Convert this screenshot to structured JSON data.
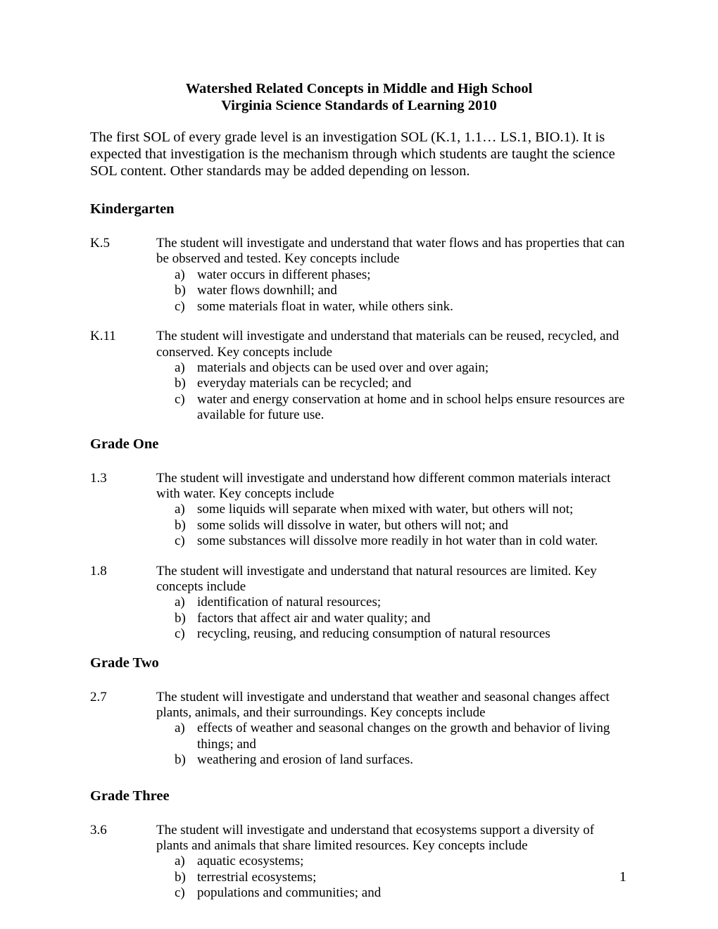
{
  "title_line1": "Watershed Related Concepts in Middle and High School",
  "title_line2": "Virginia Science Standards of Learning 2010",
  "intro": "The first SOL of every grade level is an investigation SOL (K.1, 1.1… LS.1, BIO.1). It is expected that investigation is the mechanism through which students are taught the science SOL content. Other standards may be added depending on lesson.",
  "sections": [
    {
      "heading": "Kindergarten",
      "standards": [
        {
          "code": "K.5",
          "stem": "The student will investigate and understand that water flows and has properties that can be observed and tested. Key concepts include",
          "concepts": [
            {
              "letter": "a)",
              "text": "water occurs in different phases;"
            },
            {
              "letter": "b)",
              "text": "water flows downhill; and"
            },
            {
              "letter": "c)",
              "text": "some materials float in water, while others sink."
            }
          ]
        },
        {
          "code": "K.11",
          "stem": "The student will investigate and understand that materials can be reused, recycled, and conserved. Key concepts include",
          "concepts": [
            {
              "letter": "a)",
              "text": "materials and objects can be used over and over again;"
            },
            {
              "letter": "b)",
              "text": "everyday materials can be recycled; and"
            },
            {
              "letter": "c)",
              "text": "water and energy conservation at home and in school helps ensure resources are available for future use."
            }
          ]
        }
      ]
    },
    {
      "heading": "Grade One",
      "standards": [
        {
          "code": "1.3",
          "stem": "The student will investigate and understand how different common materials interact with water. Key concepts include",
          "concepts": [
            {
              "letter": "a)",
              "text": "some liquids will separate when mixed with water, but others will not;"
            },
            {
              "letter": "b)",
              "text": "some solids will dissolve in water, but others will not; and"
            },
            {
              "letter": "c)",
              "text": "some substances will dissolve more readily in hot water than in cold water."
            }
          ]
        },
        {
          "code": "1.8",
          "stem": "The student will investigate and understand that natural resources are limited. Key concepts include",
          "concepts": [
            {
              "letter": "a)",
              "text": "identification of natural resources;"
            },
            {
              "letter": "b)",
              "text": "factors that affect air and water quality; and"
            },
            {
              "letter": "c)",
              "text": "recycling, reusing, and reducing consumption of natural resources"
            }
          ]
        }
      ]
    },
    {
      "heading": "Grade Two",
      "standards": [
        {
          "code": "2.7",
          "stem": "The student will investigate and understand that weather and seasonal changes affect plants, animals, and their surroundings. Key concepts include",
          "concepts": [
            {
              "letter": "a)",
              "text": "effects of weather and seasonal changes on the growth and behavior of living things; and"
            },
            {
              "letter": "b)",
              "text": "weathering and erosion of land surfaces."
            }
          ]
        }
      ]
    },
    {
      "heading": "Grade Three",
      "standards": [
        {
          "code": "3.6",
          "stem": "The student will investigate and understand that ecosystems support a diversity of plants and animals that share limited resources. Key concepts include",
          "concepts": [
            {
              "letter": "a)",
              "text": "aquatic ecosystems;"
            },
            {
              "letter": "b)",
              "text": "terrestrial ecosystems;"
            },
            {
              "letter": "c)",
              "text": "populations and communities; and"
            }
          ]
        }
      ]
    }
  ],
  "page_number": "1",
  "tight_headings": [
    "Grade One",
    "Grade Two"
  ],
  "heading_after_space": {
    "Grade Three": 28
  }
}
